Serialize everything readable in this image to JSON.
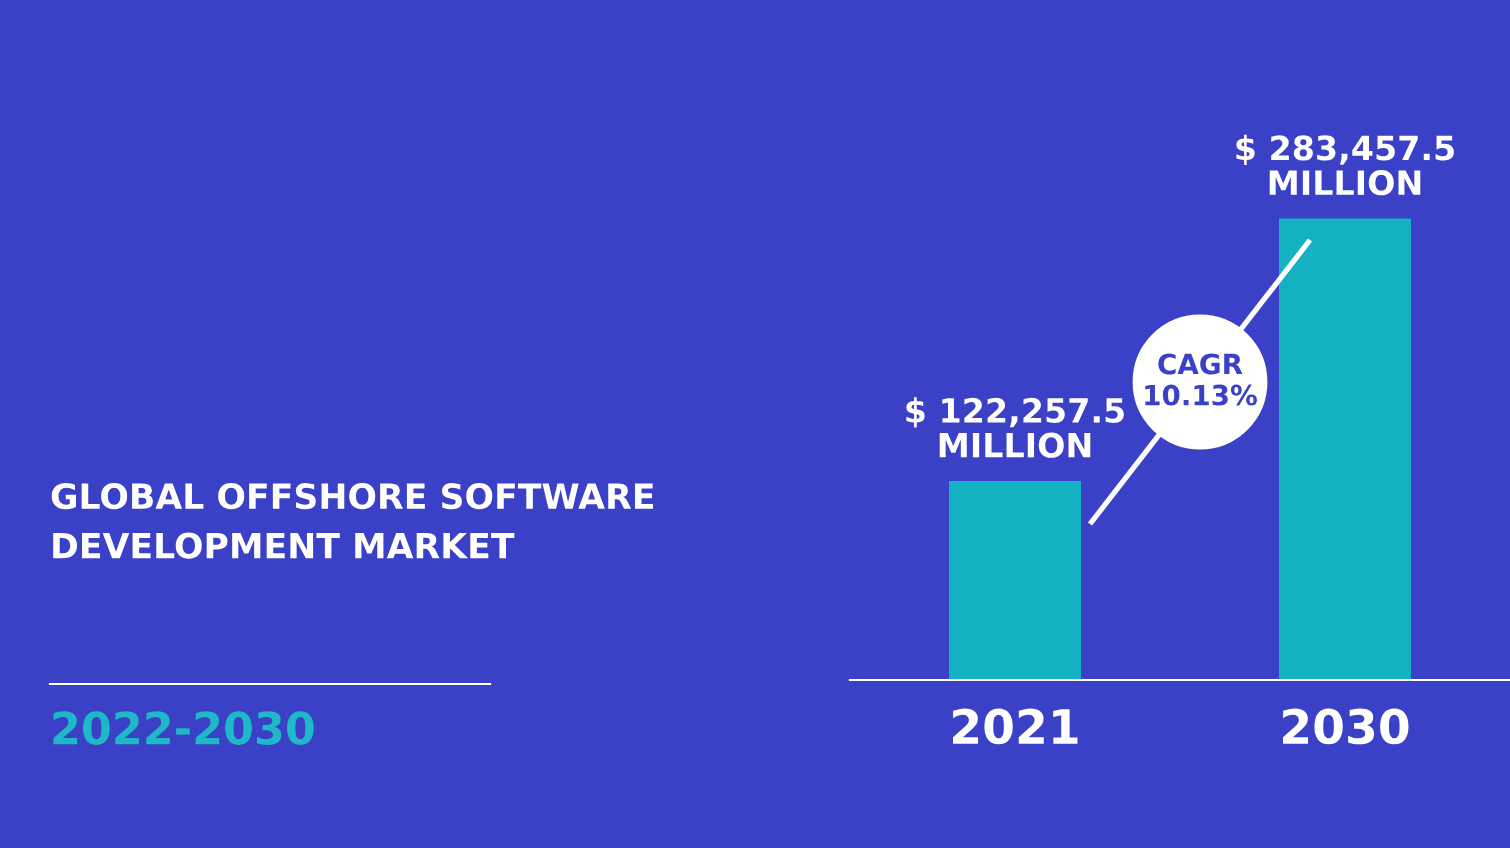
{
  "chart_data": {
    "type": "bar",
    "title": "GLOBAL OFFSHORE SOFTWARE\nDEVELOPMENT MARKET",
    "subtitle": "2022-2030",
    "categories": [
      "2021",
      "2030"
    ],
    "values": [
      122257.5,
      283457.5
    ],
    "value_labels": [
      "$ 122,257.5\nMILLION",
      "$ 283,457.5\nMILLION"
    ],
    "color": "#13b1c1",
    "annotations": [
      "CAGR\n10.13%"
    ],
    "grid": false,
    "legend": false
  }
}
